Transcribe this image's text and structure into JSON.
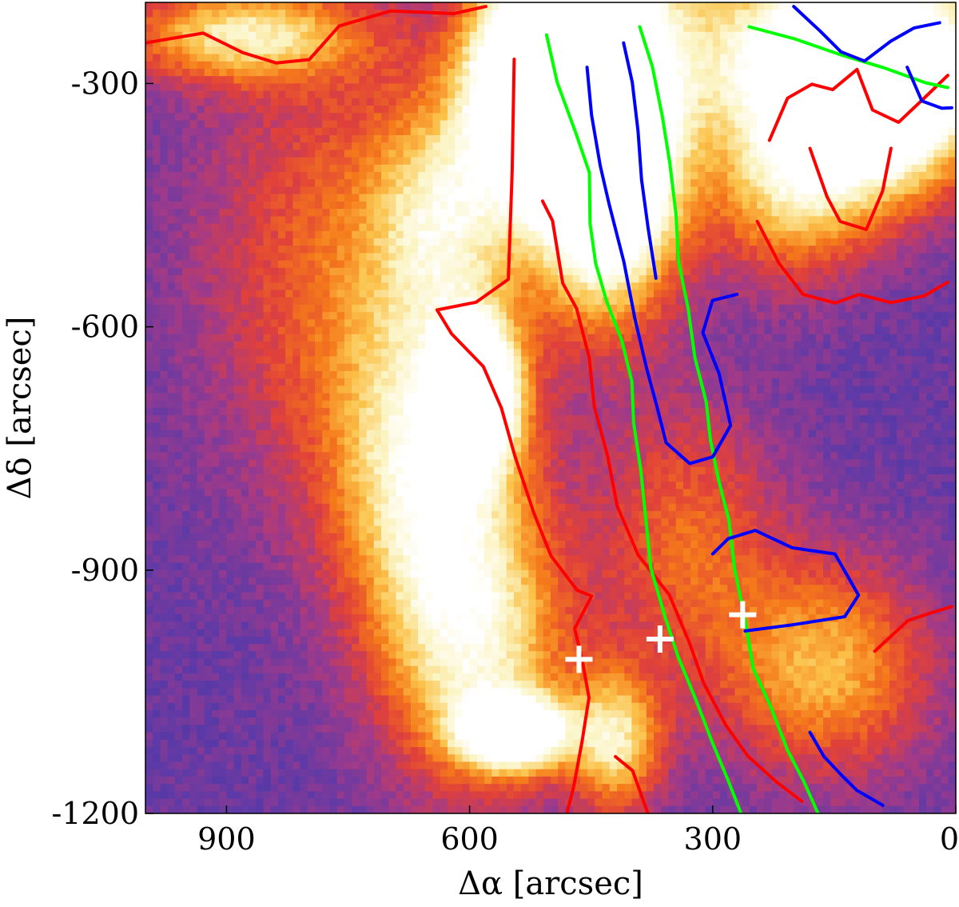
{
  "chart_data": {
    "type": "heatmap",
    "title": "",
    "xlabel": "Δα [arcsec]",
    "ylabel": "Δδ [arcsec]",
    "xlim": [
      1000,
      0
    ],
    "ylim": [
      -1200,
      -200
    ],
    "x_ticks": [
      {
        "value": 900,
        "label": "900"
      },
      {
        "value": 600,
        "label": "600"
      },
      {
        "value": 300,
        "label": "300"
      },
      {
        "value": 0,
        "label": "0"
      }
    ],
    "y_ticks": [
      {
        "value": -300,
        "label": "-300"
      },
      {
        "value": -600,
        "label": "-600"
      },
      {
        "value": -900,
        "label": "-900"
      },
      {
        "value": -1200,
        "label": "-1200"
      }
    ],
    "colormap": [
      "#1a1030",
      "#3a2a8a",
      "#5b3aa8",
      "#a03a8a",
      "#e0403a",
      "#f57a1a",
      "#fbc24a",
      "#fbf3c0",
      "#ffffff"
    ],
    "contours": [
      {
        "color": "#ff0000",
        "paths": [
          [
            [
              1000,
              -250
            ],
            [
              930,
              -235
            ],
            [
              880,
              -260
            ],
            [
              840,
              -275
            ],
            [
              800,
              -270
            ],
            [
              760,
              -230
            ],
            [
              700,
              -210
            ],
            [
              620,
              -215
            ],
            [
              580,
              -205
            ]
          ],
          [
            [
              545,
              -270
            ],
            [
              548,
              -410
            ],
            [
              555,
              -540
            ],
            [
              590,
              -570
            ],
            [
              640,
              -580
            ],
            [
              620,
              -610
            ],
            [
              580,
              -650
            ],
            [
              560,
              -700
            ],
            [
              545,
              -760
            ],
            [
              520,
              -830
            ],
            [
              500,
              -880
            ],
            [
              470,
              -925
            ],
            [
              450,
              -930
            ],
            [
              470,
              -970
            ],
            [
              460,
              -1010
            ],
            [
              450,
              -1060
            ],
            [
              460,
              -1110
            ],
            [
              470,
              -1170
            ],
            [
              480,
              -1200
            ]
          ],
          [
            [
              510,
              -445
            ],
            [
              495,
              -470
            ],
            [
              485,
              -545
            ],
            [
              470,
              -580
            ],
            [
              455,
              -640
            ],
            [
              445,
              -700
            ],
            [
              430,
              -760
            ],
            [
              415,
              -820
            ],
            [
              390,
              -880
            ],
            [
              355,
              -930
            ],
            [
              330,
              -990
            ],
            [
              310,
              -1040
            ],
            [
              285,
              -1090
            ],
            [
              255,
              -1130
            ],
            [
              220,
              -1160
            ],
            [
              190,
              -1185
            ]
          ],
          [
            [
              420,
              -1130
            ],
            [
              400,
              -1150
            ],
            [
              380,
              -1200
            ]
          ],
          [
            [
              230,
              -370
            ],
            [
              210,
              -320
            ],
            [
              180,
              -300
            ],
            [
              150,
              -310
            ],
            [
              120,
              -285
            ],
            [
              100,
              -330
            ],
            [
              70,
              -350
            ],
            [
              40,
              -320
            ],
            [
              10,
              -290
            ]
          ],
          [
            [
              245,
              -470
            ],
            [
              220,
              -520
            ],
            [
              190,
              -560
            ],
            [
              150,
              -570
            ],
            [
              120,
              -560
            ],
            [
              80,
              -570
            ],
            [
              40,
              -560
            ],
            [
              10,
              -545
            ]
          ],
          [
            [
              180,
              -380
            ],
            [
              160,
              -440
            ],
            [
              140,
              -470
            ],
            [
              110,
              -480
            ],
            [
              90,
              -430
            ],
            [
              80,
              -380
            ]
          ],
          [
            [
              100,
              -1000
            ],
            [
              60,
              -960
            ],
            [
              30,
              -950
            ],
            [
              5,
              -945
            ]
          ]
        ]
      },
      {
        "color": "#00ff00",
        "paths": [
          [
            [
              505,
              -240
            ],
            [
              490,
              -300
            ],
            [
              470,
              -360
            ],
            [
              455,
              -410
            ],
            [
              450,
              -470
            ],
            [
              445,
              -520
            ],
            [
              430,
              -570
            ],
            [
              415,
              -620
            ],
            [
              400,
              -670
            ],
            [
              395,
              -720
            ],
            [
              390,
              -780
            ],
            [
              385,
              -840
            ],
            [
              375,
              -900
            ],
            [
              360,
              -960
            ],
            [
              340,
              -1010
            ],
            [
              320,
              -1060
            ],
            [
              300,
              -1110
            ],
            [
              280,
              -1160
            ],
            [
              265,
              -1200
            ]
          ],
          [
            [
              390,
              -230
            ],
            [
              375,
              -280
            ],
            [
              360,
              -340
            ],
            [
              350,
              -400
            ],
            [
              345,
              -460
            ],
            [
              340,
              -520
            ],
            [
              330,
              -580
            ],
            [
              320,
              -640
            ],
            [
              310,
              -690
            ],
            [
              300,
              -740
            ],
            [
              290,
              -790
            ],
            [
              280,
              -840
            ],
            [
              270,
              -900
            ],
            [
              260,
              -960
            ],
            [
              250,
              -1020
            ],
            [
              230,
              -1070
            ],
            [
              210,
              -1120
            ],
            [
              185,
              -1160
            ],
            [
              170,
              -1200
            ]
          ],
          [
            [
              255,
              -230
            ],
            [
              200,
              -245
            ],
            [
              140,
              -265
            ],
            [
              90,
              -280
            ],
            [
              40,
              -300
            ],
            [
              10,
              -305
            ]
          ]
        ]
      },
      {
        "color": "#0000ff",
        "paths": [
          [
            [
              455,
              -280
            ],
            [
              450,
              -340
            ],
            [
              440,
              -400
            ],
            [
              425,
              -450
            ],
            [
              410,
              -520
            ],
            [
              395,
              -590
            ],
            [
              380,
              -650
            ],
            [
              370,
              -700
            ],
            [
              360,
              -740
            ],
            [
              330,
              -770
            ],
            [
              300,
              -760
            ],
            [
              280,
              -720
            ],
            [
              290,
              -660
            ],
            [
              310,
              -610
            ],
            [
              300,
              -570
            ],
            [
              270,
              -560
            ]
          ],
          [
            [
              410,
              -250
            ],
            [
              400,
              -300
            ],
            [
              395,
              -360
            ],
            [
              385,
              -420
            ],
            [
              380,
              -480
            ],
            [
              370,
              -540
            ]
          ],
          [
            [
              300,
              -880
            ],
            [
              280,
              -860
            ],
            [
              250,
              -850
            ],
            [
              200,
              -870
            ],
            [
              150,
              -880
            ],
            [
              120,
              -930
            ],
            [
              140,
              -960
            ],
            [
              200,
              -970
            ],
            [
              260,
              -975
            ]
          ],
          [
            [
              180,
              -1100
            ],
            [
              160,
              -1130
            ],
            [
              140,
              -1150
            ],
            [
              120,
              -1170
            ],
            [
              90,
              -1190
            ]
          ],
          [
            [
              200,
              -205
            ],
            [
              170,
              -235
            ],
            [
              140,
              -260
            ],
            [
              110,
              -270
            ],
            [
              80,
              -250
            ],
            [
              50,
              -230
            ],
            [
              20,
              -225
            ]
          ],
          [
            [
              60,
              -280
            ],
            [
              40,
              -320
            ],
            [
              20,
              -330
            ],
            [
              5,
              -330
            ]
          ]
        ]
      }
    ],
    "markers": [
      {
        "x": 465,
        "y": -1010,
        "shape": "plus",
        "color": "#ffffff"
      },
      {
        "x": 365,
        "y": -985,
        "shape": "plus",
        "color": "#ffffff"
      },
      {
        "x": 263,
        "y": -955,
        "shape": "plus",
        "color": "#ffffff"
      }
    ],
    "intensity_peaks": [
      {
        "x": 450,
        "y": -240,
        "level": 1.0,
        "sx": 70,
        "sy": 150
      },
      {
        "x": 430,
        "y": -420,
        "level": 0.95,
        "sx": 60,
        "sy": 110
      },
      {
        "x": 540,
        "y": -300,
        "level": 0.8,
        "sx": 50,
        "sy": 90
      },
      {
        "x": 140,
        "y": -260,
        "level": 0.95,
        "sx": 130,
        "sy": 80
      },
      {
        "x": 80,
        "y": -330,
        "level": 0.7,
        "sx": 70,
        "sy": 80
      },
      {
        "x": 200,
        "y": -420,
        "level": 0.55,
        "sx": 70,
        "sy": 80
      },
      {
        "x": 590,
        "y": -680,
        "level": 0.95,
        "sx": 35,
        "sy": 60
      },
      {
        "x": 650,
        "y": -780,
        "level": 0.6,
        "sx": 80,
        "sy": 140
      },
      {
        "x": 590,
        "y": -1000,
        "level": 0.55,
        "sx": 80,
        "sy": 120
      },
      {
        "x": 545,
        "y": -1100,
        "level": 0.95,
        "sx": 45,
        "sy": 30
      },
      {
        "x": 420,
        "y": -1110,
        "level": 0.55,
        "sx": 40,
        "sy": 60
      },
      {
        "x": 880,
        "y": -240,
        "level": 0.55,
        "sx": 100,
        "sy": 40
      },
      {
        "x": 630,
        "y": -460,
        "level": 0.45,
        "sx": 60,
        "sy": 100
      },
      {
        "x": 160,
        "y": -1020,
        "level": 0.45,
        "sx": 90,
        "sy": 90
      },
      {
        "x": 330,
        "y": -860,
        "level": 0.3,
        "sx": 80,
        "sy": 120
      },
      {
        "x": 760,
        "y": -520,
        "level": 0.3,
        "sx": 120,
        "sy": 200
      }
    ]
  }
}
